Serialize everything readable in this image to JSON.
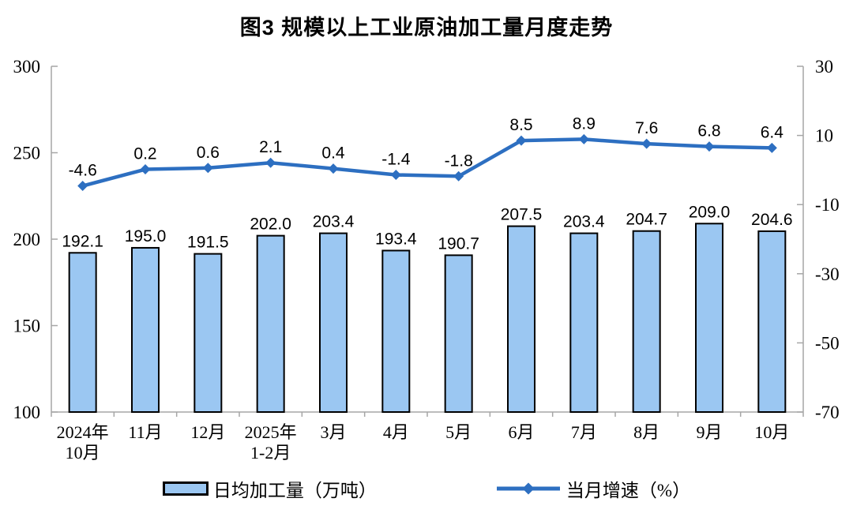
{
  "title": "图3 规模以上工业原油加工量月度走势",
  "chart_data": {
    "type": "combo-bar-line",
    "title": "图3 规模以上工业原油加工量月度走势",
    "categories": [
      "2024年\n10月",
      "11月",
      "12月",
      "2025年\n1-2月",
      "3月",
      "4月",
      "5月",
      "6月",
      "7月",
      "8月",
      "9月",
      "10月"
    ],
    "series": [
      {
        "name": "日均加工量（万吨）",
        "type": "bar",
        "axis": "left",
        "values": [
          192.1,
          195.0,
          191.5,
          202.0,
          203.4,
          193.4,
          190.7,
          207.5,
          203.4,
          204.7,
          209.0,
          204.6
        ]
      },
      {
        "name": "当月增速（%）",
        "type": "line",
        "axis": "right",
        "values": [
          -4.6,
          0.2,
          0.6,
          2.1,
          0.4,
          -1.4,
          -1.8,
          8.5,
          8.9,
          7.6,
          6.8,
          6.4
        ]
      }
    ],
    "left_axis": {
      "min": 100,
      "max": 300,
      "ticks": [
        100,
        150,
        200,
        250,
        300
      ]
    },
    "right_axis": {
      "min": -70,
      "max": 30,
      "ticks": [
        -70,
        -50,
        -30,
        -10,
        10,
        30
      ]
    },
    "gridlines": false,
    "legend_position": "bottom",
    "colors": {
      "bar_fill": "#9BC7F2",
      "bar_border": "#000000",
      "line": "#2D6FC1",
      "axis": "#A6A6A6",
      "text": "#000000"
    }
  }
}
